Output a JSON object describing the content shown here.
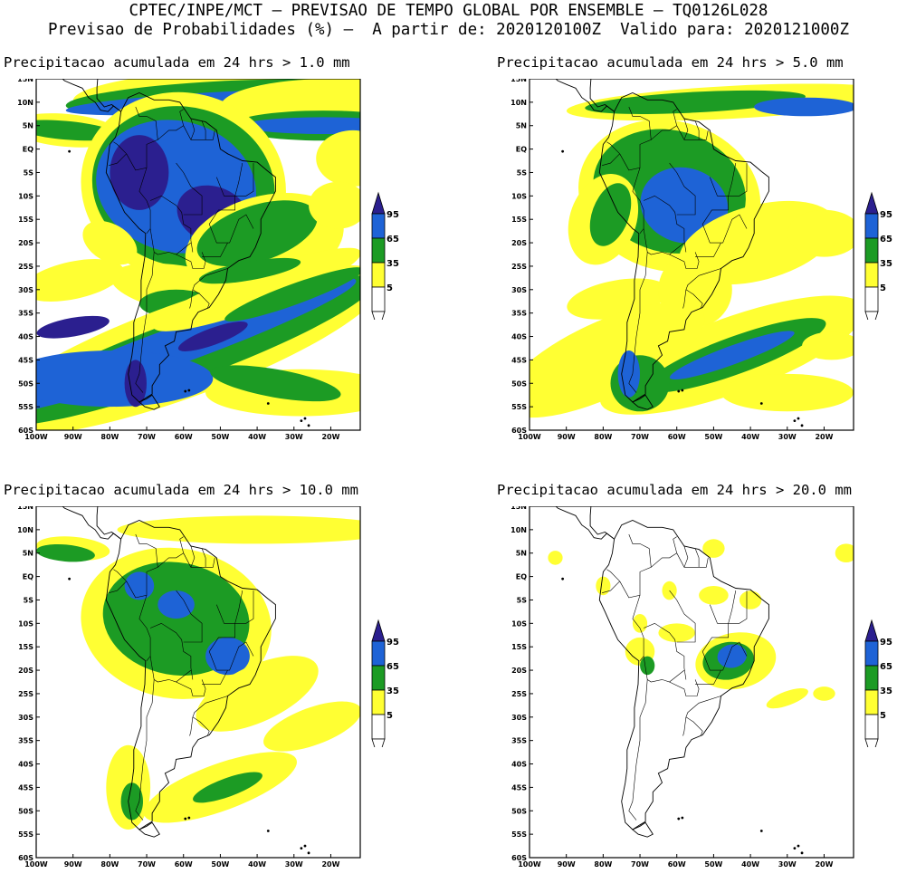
{
  "header": {
    "line1": "CPTEC/INPE/MCT – PREVISAO DE TEMPO GLOBAL POR ENSEMBLE – TQ0126L028",
    "line2": "Previsao de Probabilidades (%) –  A partir de: 2020120100Z  Valido para: 2020121000Z"
  },
  "lat_labels": [
    "15N",
    "10N",
    "5N",
    "EQ",
    "5S",
    "10S",
    "15S",
    "20S",
    "25S",
    "30S",
    "35S",
    "40S",
    "45S",
    "50S",
    "55S",
    "60S"
  ],
  "lon_labels": [
    "100W",
    "90W",
    "80W",
    "70W",
    "60W",
    "50W",
    "40W",
    "30W",
    "20W"
  ],
  "legend": {
    "levels": [
      "95",
      "65",
      "35",
      "5"
    ],
    "colors": [
      "#2b1f8f",
      "#1e63d6",
      "#1c9b24",
      "#ffff33",
      "#ffffff"
    ]
  },
  "panels": [
    {
      "title": "Precipitacao acumulada em 24 hrs > 1.0 mm"
    },
    {
      "title": "Precipitacao acumulada em 24 hrs > 5.0 mm"
    },
    {
      "title": "Precipitacao acumulada em 24 hrs > 10.0 mm"
    },
    {
      "title": "Precipitacao acumulada em 24 hrs > 20.0 mm"
    }
  ]
}
